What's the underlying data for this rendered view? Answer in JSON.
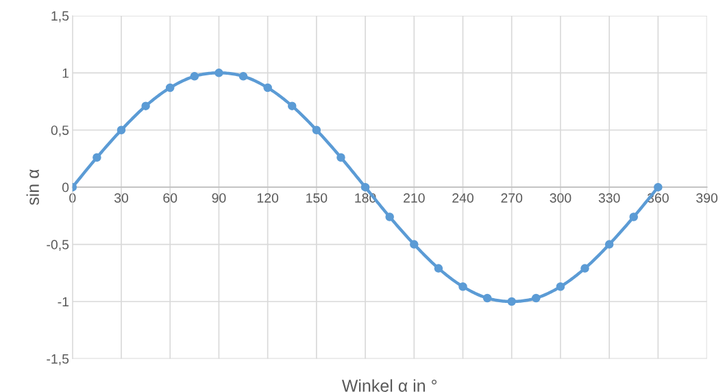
{
  "chart_data": {
    "type": "line",
    "xlabel": "Winkel α in °",
    "ylabel": "sin α",
    "x": [
      0,
      15,
      30,
      45,
      60,
      75,
      90,
      105,
      120,
      135,
      150,
      165,
      180,
      195,
      210,
      225,
      240,
      255,
      270,
      285,
      300,
      315,
      330,
      345,
      360
    ],
    "series": [
      {
        "color": "#5b9bd5",
        "values": [
          0,
          0.26,
          0.5,
          0.71,
          0.87,
          0.97,
          1,
          0.97,
          0.87,
          0.71,
          0.5,
          0.26,
          0,
          -0.26,
          -0.5,
          -0.71,
          -0.87,
          -0.97,
          -1,
          -0.97,
          -0.87,
          -0.71,
          -0.5,
          -0.26,
          0
        ]
      }
    ],
    "xlim": [
      0,
      390
    ],
    "xticks": [
      0,
      30,
      60,
      90,
      120,
      150,
      180,
      210,
      240,
      270,
      300,
      330,
      360,
      390
    ],
    "ylim": [
      -1.5,
      1.5
    ],
    "yticks": [
      {
        "value": -1.5,
        "label": "-1,5"
      },
      {
        "value": -1,
        "label": "-1"
      },
      {
        "value": -0.5,
        "label": "-0,5"
      },
      0,
      {
        "value": 0.5,
        "label": "0,5"
      },
      1,
      {
        "value": 1.5,
        "label": "1,5"
      }
    ],
    "grid": true,
    "marker": "circle",
    "line_style": "solid",
    "legend": false
  }
}
